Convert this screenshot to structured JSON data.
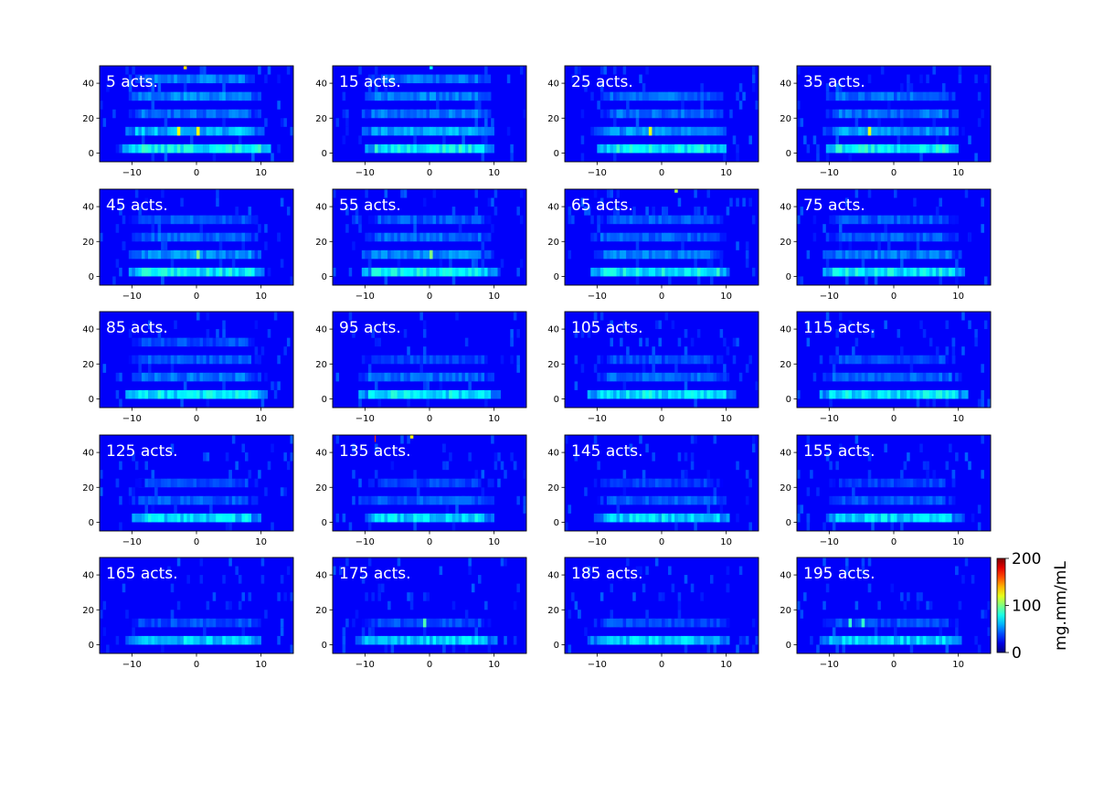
{
  "chart_data": {
    "type": "heatmap",
    "layout": {
      "rows": 5,
      "cols": 4
    },
    "x_ticks": [
      -10,
      0,
      10
    ],
    "y_ticks": [
      0,
      20,
      40
    ],
    "xlim": [
      -15,
      15
    ],
    "ylim": [
      -5,
      50
    ],
    "colormap": "jet",
    "colorbar": {
      "label": "mg.mm/mL",
      "range": [
        0,
        200
      ],
      "ticks": [
        0,
        100,
        200
      ]
    },
    "panels": [
      {
        "label": "5 acts.",
        "bands": [
          {
            "y": 0,
            "level": 80
          },
          {
            "y": 10,
            "level": 65
          },
          {
            "y": 20,
            "level": 50
          },
          {
            "y": 30,
            "level": 55
          },
          {
            "y": 40,
            "level": 52
          }
        ],
        "hotspots": [
          {
            "x": -2,
            "y": 48,
            "value": 130
          },
          {
            "x": -3,
            "y": 10,
            "value": 125
          },
          {
            "x": 0,
            "y": 10,
            "value": 125
          }
        ]
      },
      {
        "label": "15 acts.",
        "bands": [
          {
            "y": 0,
            "level": 80
          },
          {
            "y": 10,
            "level": 62
          },
          {
            "y": 20,
            "level": 52
          },
          {
            "y": 30,
            "level": 52
          },
          {
            "y": 40,
            "level": 50
          }
        ],
        "hotspots": [
          {
            "x": 0,
            "y": 48,
            "value": 75
          }
        ]
      },
      {
        "label": "25 acts.",
        "bands": [
          {
            "y": 0,
            "level": 80
          },
          {
            "y": 10,
            "level": 58
          },
          {
            "y": 20,
            "level": 50
          },
          {
            "y": 30,
            "level": 48
          }
        ],
        "hotspots": [
          {
            "x": -2,
            "y": 10,
            "value": 120
          }
        ]
      },
      {
        "label": "35 acts.",
        "bands": [
          {
            "y": 0,
            "level": 80
          },
          {
            "y": 10,
            "level": 58
          },
          {
            "y": 20,
            "level": 50
          },
          {
            "y": 30,
            "level": 48
          }
        ],
        "hotspots": [
          {
            "x": -4,
            "y": 10,
            "value": 120
          }
        ]
      },
      {
        "label": "45 acts.",
        "bands": [
          {
            "y": 0,
            "level": 78
          },
          {
            "y": 10,
            "level": 55
          },
          {
            "y": 20,
            "level": 48
          },
          {
            "y": 30,
            "level": 45
          }
        ],
        "hotspots": [
          {
            "x": 0,
            "y": 10,
            "value": 100
          }
        ]
      },
      {
        "label": "55 acts.",
        "bands": [
          {
            "y": 0,
            "level": 78
          },
          {
            "y": 10,
            "level": 55
          },
          {
            "y": 20,
            "level": 48
          },
          {
            "y": 30,
            "level": 45
          }
        ],
        "hotspots": [
          {
            "x": 0,
            "y": 10,
            "value": 100
          }
        ]
      },
      {
        "label": "65 acts.",
        "bands": [
          {
            "y": 0,
            "level": 78
          },
          {
            "y": 10,
            "level": 52
          },
          {
            "y": 20,
            "level": 46
          },
          {
            "y": 30,
            "level": 45
          }
        ],
        "hotspots": [
          {
            "x": 2,
            "y": 48,
            "value": 110
          }
        ]
      },
      {
        "label": "75 acts.",
        "bands": [
          {
            "y": 0,
            "level": 78
          },
          {
            "y": 10,
            "level": 52
          },
          {
            "y": 20,
            "level": 46
          },
          {
            "y": 30,
            "level": 45
          }
        ],
        "hotspots": []
      },
      {
        "label": "85 acts.",
        "bands": [
          {
            "y": 0,
            "level": 76
          },
          {
            "y": 10,
            "level": 50
          },
          {
            "y": 20,
            "level": 44
          },
          {
            "y": 30,
            "level": 42
          }
        ],
        "hotspots": []
      },
      {
        "label": "95 acts.",
        "bands": [
          {
            "y": 0,
            "level": 76
          },
          {
            "y": 10,
            "level": 48
          },
          {
            "y": 20,
            "level": 42
          }
        ],
        "hotspots": []
      },
      {
        "label": "105 acts.",
        "bands": [
          {
            "y": 0,
            "level": 76
          },
          {
            "y": 10,
            "level": 48
          },
          {
            "y": 20,
            "level": 42
          }
        ],
        "hotspots": []
      },
      {
        "label": "115 acts.",
        "bands": [
          {
            "y": 0,
            "level": 76
          },
          {
            "y": 10,
            "level": 48
          },
          {
            "y": 20,
            "level": 42
          }
        ],
        "hotspots": []
      },
      {
        "label": "125 acts.",
        "bands": [
          {
            "y": 0,
            "level": 72
          },
          {
            "y": 10,
            "level": 45
          },
          {
            "y": 20,
            "level": 40
          }
        ],
        "hotspots": []
      },
      {
        "label": "135 acts.",
        "bands": [
          {
            "y": 0,
            "level": 72
          },
          {
            "y": 10,
            "level": 45
          },
          {
            "y": 20,
            "level": 40
          }
        ],
        "hotspots": [
          {
            "x": -3,
            "y": 48,
            "value": 125
          },
          {
            "x": -8.5,
            "y": 46,
            "value": 165
          }
        ]
      },
      {
        "label": "145 acts.",
        "bands": [
          {
            "y": 0,
            "level": 72
          },
          {
            "y": 10,
            "level": 45
          },
          {
            "y": 20,
            "level": 40
          }
        ],
        "hotspots": []
      },
      {
        "label": "155 acts.",
        "bands": [
          {
            "y": 0,
            "level": 72
          },
          {
            "y": 10,
            "level": 45
          },
          {
            "y": 20,
            "level": 40
          }
        ],
        "hotspots": []
      },
      {
        "label": "165 acts.",
        "bands": [
          {
            "y": 0,
            "level": 70
          },
          {
            "y": 10,
            "level": 42
          }
        ],
        "hotspots": []
      },
      {
        "label": "175 acts.",
        "bands": [
          {
            "y": 0,
            "level": 70
          },
          {
            "y": 10,
            "level": 42
          }
        ],
        "hotspots": [
          {
            "x": -1,
            "y": 10,
            "value": 90
          }
        ]
      },
      {
        "label": "185 acts.",
        "bands": [
          {
            "y": 0,
            "level": 70
          },
          {
            "y": 10,
            "level": 42
          }
        ],
        "hotspots": []
      },
      {
        "label": "195 acts.",
        "bands": [
          {
            "y": 0,
            "level": 70
          },
          {
            "y": 10,
            "level": 42
          }
        ],
        "hotspots": [
          {
            "x": -7,
            "y": 10,
            "value": 85
          },
          {
            "x": -5,
            "y": 10,
            "value": 85
          }
        ]
      }
    ]
  }
}
